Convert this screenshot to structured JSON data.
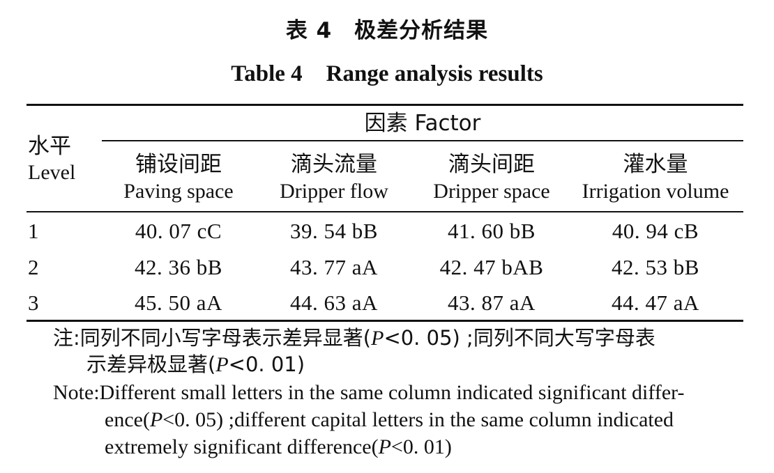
{
  "caption": {
    "cn": "表 4　极差分析结果",
    "en_label": "Table 4",
    "en_title": "Range analysis results"
  },
  "table": {
    "level_header": {
      "cn": "水平",
      "en": "Level"
    },
    "factor_header": "因素 Factor",
    "columns": [
      {
        "cn": "铺设间距",
        "en": "Paving space"
      },
      {
        "cn": "滴头流量",
        "en": "Dripper flow"
      },
      {
        "cn": "滴头间距",
        "en": "Dripper space"
      },
      {
        "cn": "灌水量",
        "en": "Irrigation volume"
      }
    ],
    "rows": [
      {
        "level": "1",
        "values": [
          "40. 07 cC",
          "39. 54 bB",
          "41. 60 bB",
          "40. 94 cB"
        ]
      },
      {
        "level": "2",
        "values": [
          "42. 36 bB",
          "43. 77 aA",
          "42. 47 bAB",
          "42. 53 bB"
        ]
      },
      {
        "level": "3",
        "values": [
          "45. 50 aA",
          "44. 63 aA",
          "43. 87 aA",
          "44. 47 aA"
        ]
      }
    ]
  },
  "notes": {
    "cn_label": "注:",
    "cn_line1_a": "同列不同小写字母表示差异显著(",
    "cn_line1_p": "P",
    "cn_line1_b": "<0. 05) ;同列不同大写字母表",
    "cn_line2_a": "示差异极显著(",
    "cn_line2_p": "P",
    "cn_line2_b": "<0. 01)",
    "en_label": "Note:",
    "en_line1": "Different small letters in the same column indicated significant differ-",
    "en_line2_a": "ence(",
    "en_line2_p": "P",
    "en_line2_b": "<0. 05) ;different capital letters in the same column indicated",
    "en_line3_a": "extremely significant difference(",
    "en_line3_p": "P",
    "en_line3_b": "<0. 01)"
  }
}
